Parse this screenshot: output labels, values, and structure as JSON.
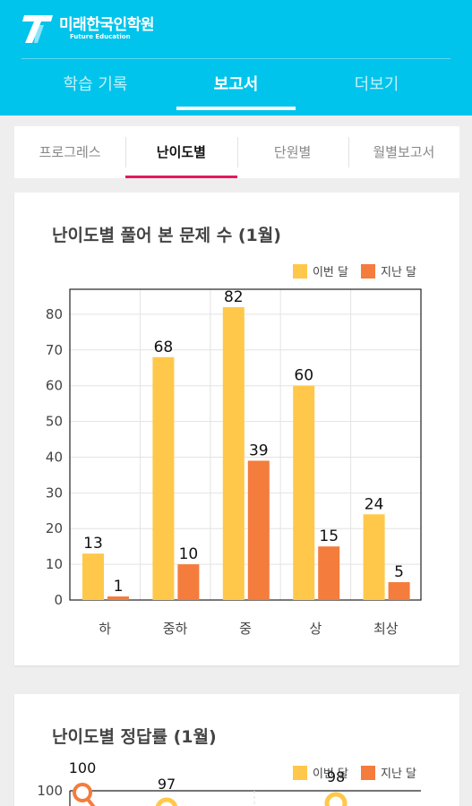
{
  "brand": {
    "name": "미래한국인학원",
    "sub": "Future Education"
  },
  "main_tabs": [
    {
      "label": "학습 기록",
      "active": false
    },
    {
      "label": "보고서",
      "active": true
    },
    {
      "label": "더보기",
      "active": false
    }
  ],
  "sub_tabs": [
    {
      "label": "프로그레스",
      "active": false
    },
    {
      "label": "난이도별",
      "active": true
    },
    {
      "label": "단원별",
      "active": false
    },
    {
      "label": "월별보고서",
      "active": false
    }
  ],
  "colors": {
    "this_month": "#ffc84a",
    "last_month": "#f47c3c",
    "header": "#00c4ec",
    "accent": "#e5195f"
  },
  "chart_data": [
    {
      "type": "bar",
      "title": "난이도별 풀어 본 문제 수 (1월)",
      "categories": [
        "하",
        "중하",
        "중",
        "상",
        "최상"
      ],
      "series": [
        {
          "name": "이번 달",
          "values": [
            13,
            68,
            82,
            60,
            24
          ]
        },
        {
          "name": "지난 달",
          "values": [
            1,
            10,
            39,
            15,
            5
          ]
        }
      ],
      "ylim": [
        0,
        87
      ],
      "yticks": [
        0,
        10,
        20,
        30,
        40,
        50,
        60,
        70,
        80
      ],
      "grid": true,
      "legend": "top-right"
    },
    {
      "type": "line",
      "title": "난이도별 정답률 (1월)",
      "series": [
        {
          "name": "이번 달",
          "values": [
            null,
            97,
            null,
            98
          ]
        },
        {
          "name": "지난 달",
          "values": [
            100
          ]
        }
      ],
      "visible_labels": [
        "100",
        "97",
        "98"
      ],
      "yticks": [
        100
      ],
      "legend": "top-right"
    }
  ]
}
